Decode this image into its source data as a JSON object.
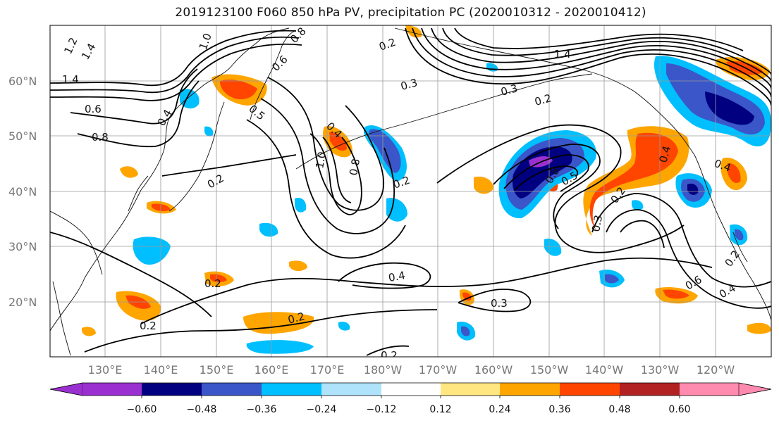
{
  "title": "2019123100 F060 850 hPa PV, precipitation PC (2020010312 - 2020010412)",
  "lat_labels": [
    "60°N",
    "50°N",
    "40°N",
    "30°N",
    "20°N"
  ],
  "lon_labels": [
    "130°E",
    "140°E",
    "150°E",
    "160°E",
    "170°E",
    "180°W",
    "170°W",
    "160°W",
    "150°W",
    "140°W",
    "130°W",
    "120°W"
  ],
  "colorbar": {
    "colors": [
      "#9b30d0",
      "#000080",
      "#3a56c8",
      "#00bfff",
      "#aee3fb",
      "#ffffff",
      "#ffe680",
      "#ffa500",
      "#ff4500",
      "#b22222",
      "#ff8ab0"
    ],
    "ticks": [
      "−0.60",
      "−0.48",
      "−0.36",
      "−0.24",
      "−0.12",
      "0.12",
      "0.24",
      "0.36",
      "0.48",
      "0.60"
    ]
  },
  "contour_labels": [
    "1.4",
    "1.2",
    "1.4",
    "0.6",
    "0.8",
    "1.0",
    "0.5",
    "0.6",
    "0.8",
    "0.2",
    "0.4",
    "1.0",
    "0.8",
    "0.2",
    "0.3",
    "0.2",
    "0.2",
    "0.4",
    "0.2",
    "0.3",
    "1.4",
    "0.3",
    "0.2",
    "0.8",
    "0.5",
    "0.4",
    "0.3",
    "0.2",
    "0.4",
    "0.6",
    "0.4",
    "0.2",
    "0.2",
    "0.4",
    "0.2"
  ]
}
